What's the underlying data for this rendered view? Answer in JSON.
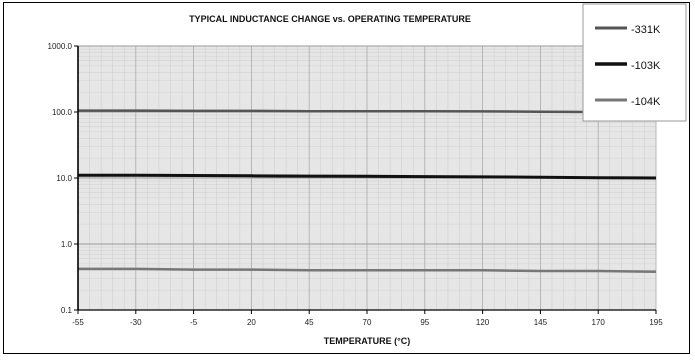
{
  "chart_data": {
    "type": "line",
    "title": "TYPICAL INDUCTANCE CHANGE vs. OPERATING TEMPERATURE",
    "xlabel": "TEMPERATURE (°C)",
    "ylabel": "",
    "x_ticks": [
      "-55",
      "-30",
      "-5",
      "20",
      "45",
      "70",
      "95",
      "120",
      "145",
      "170",
      "195"
    ],
    "y_ticks": [
      "0.1",
      "1.0",
      "10.0",
      "100.0",
      "1000.0"
    ],
    "x": [
      -55,
      195
    ],
    "xlim": [
      -55,
      195
    ],
    "ylim": [
      0.1,
      1000
    ],
    "y_scale": "log",
    "grid": true,
    "legend_position": "top-right",
    "series": [
      {
        "name": "-331K",
        "x": [
          -55,
          -30,
          -5,
          20,
          45,
          70,
          95,
          120,
          145,
          170,
          195
        ],
        "values": [
          105,
          105,
          104,
          104,
          103,
          103,
          103,
          102,
          101,
          100,
          100
        ],
        "color": "#555555",
        "width": 2.5
      },
      {
        "name": "-103K",
        "x": [
          -55,
          -30,
          -5,
          20,
          45,
          70,
          95,
          120,
          145,
          170,
          195
        ],
        "values": [
          11,
          11,
          10.9,
          10.8,
          10.7,
          10.6,
          10.5,
          10.4,
          10.3,
          10.1,
          10.0
        ],
        "color": "#111111",
        "width": 3
      },
      {
        "name": "-104K",
        "x": [
          -55,
          -30,
          -5,
          20,
          45,
          70,
          95,
          120,
          145,
          170,
          195
        ],
        "values": [
          0.42,
          0.42,
          0.41,
          0.41,
          0.4,
          0.4,
          0.4,
          0.4,
          0.39,
          0.39,
          0.38
        ],
        "color": "#777777",
        "width": 2.5
      }
    ]
  }
}
